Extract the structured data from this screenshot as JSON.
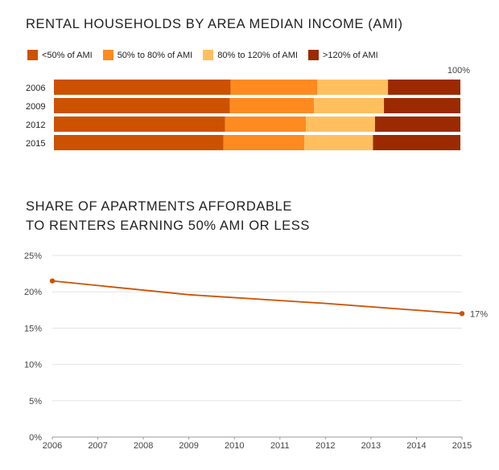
{
  "chart_data": [
    {
      "type": "bar",
      "orientation": "horizontal",
      "stacked": true,
      "title": "RENTAL HOUSEHOLDS BY AREA MEDIAN INCOME (AMI)",
      "categories": [
        "2006",
        "2009",
        "2012",
        "2015"
      ],
      "series": [
        {
          "name": "<50% of AMI",
          "color": "#cc5200",
          "values": [
            43.5,
            43.3,
            42.1,
            41.7
          ]
        },
        {
          "name": "50% to 80% of AMI",
          "color": "#ff8a1f",
          "values": [
            21.3,
            20.7,
            19.9,
            19.9
          ]
        },
        {
          "name": "80% to 120% of AMI",
          "color": "#ffbf5e",
          "values": [
            17.4,
            17.2,
            17.0,
            16.9
          ]
        },
        {
          "name": ">120% of AMI",
          "color": "#9c2a00",
          "values": [
            17.8,
            18.8,
            21.0,
            21.5
          ]
        }
      ],
      "xlim": [
        0,
        100
      ],
      "annotation": "100%",
      "legend": "top-left"
    },
    {
      "type": "line",
      "title": "SHARE OF APARTMENTS AFFORDABLE TO RENTERS EARNING 50% AMI OR LESS",
      "title_lines": [
        "SHARE OF APARTMENTS AFFORDABLE",
        "TO RENTERS EARNING 50% AMI OR LESS"
      ],
      "x": [
        2006,
        2009,
        2012,
        2015
      ],
      "x_ticks": [
        "2006",
        "2007",
        "2008",
        "2009",
        "2010",
        "2011",
        "2012",
        "2013",
        "2014",
        "2015"
      ],
      "y": [
        21.5,
        19.6,
        18.4,
        17.0
      ],
      "y_ticks": [
        "0%",
        "5%",
        "10%",
        "15%",
        "20%",
        "25%"
      ],
      "ylim": [
        0,
        25
      ],
      "grid": true,
      "line_color": "#cc5200",
      "end_label": "17%",
      "markers": "endpoints"
    }
  ]
}
